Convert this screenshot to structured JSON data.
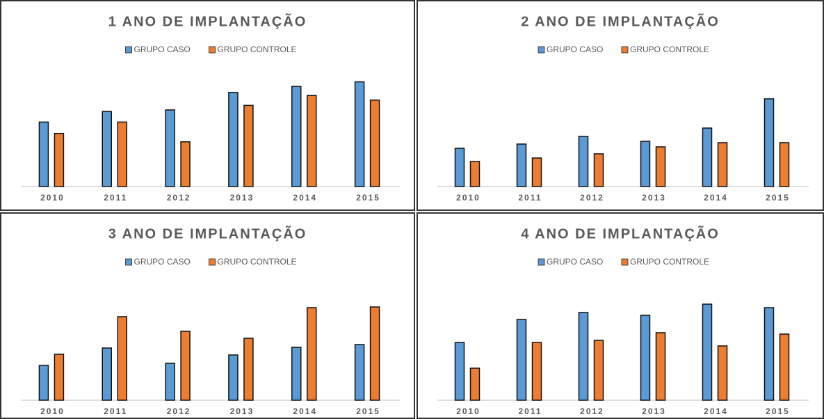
{
  "chart_data": [
    {
      "type": "bar",
      "title": "1 ANO DE IMPLANTAÇÃO",
      "categories": [
        "2010",
        "2011",
        "2012",
        "2013",
        "2014",
        "2015"
      ],
      "series": [
        {
          "name": "GRUPO CASO",
          "color": "#5b9bd5",
          "values": [
            85000000,
            99000000,
            101000000,
            124000000,
            132000000,
            138000000
          ]
        },
        {
          "name": "GRUPO CONTROLE",
          "color": "#ed7d31",
          "values": [
            70000000,
            85000000,
            59000000,
            107000000,
            120000000,
            114000000
          ]
        }
      ],
      "ylim": [
        0,
        156000000
      ],
      "legend": "top"
    },
    {
      "type": "bar",
      "title": "2 ANO DE IMPLANTAÇÃO",
      "categories": [
        "2010",
        "2011",
        "2012",
        "2013",
        "2014",
        "2015"
      ],
      "series": [
        {
          "name": "GRUPO CASO",
          "color": "#5b9bd5",
          "values": [
            1100000,
            1220000,
            1440000,
            1300000,
            1680000,
            2520000
          ]
        },
        {
          "name": "GRUPO CONTROLE",
          "color": "#ed7d31",
          "values": [
            720000,
            820000,
            940000,
            1140000,
            1260000,
            1260000
          ]
        }
      ],
      "ylim": [
        0,
        3400000
      ],
      "legend": "top"
    },
    {
      "type": "bar",
      "title": "3 ANO DE IMPLANTAÇÃO",
      "categories": [
        "2010",
        "2011",
        "2012",
        "2013",
        "2014",
        "2015"
      ],
      "series": [
        {
          "name": "GRUPO CASO",
          "color": "#5b9bd5",
          "values": [
            1000000,
            1500000,
            1060000,
            1300000,
            1520000,
            1600000
          ]
        },
        {
          "name": "GRUPO CONTROLE",
          "color": "#ed7d31",
          "values": [
            1320000,
            2400000,
            1980000,
            1780000,
            2660000,
            2680000
          ]
        }
      ],
      "ylim": [
        0,
        3400000
      ],
      "legend": "top"
    },
    {
      "type": "bar",
      "title": "4 ANO DE IMPLANTAÇÃO",
      "categories": [
        "2010",
        "2011",
        "2012",
        "2013",
        "2014",
        "2015"
      ],
      "series": [
        {
          "name": "GRUPO CASO",
          "color": "#5b9bd5",
          "values": [
            1660000,
            2320000,
            2520000,
            2440000,
            2760000,
            2660000
          ]
        },
        {
          "name": "GRUPO CONTROLE",
          "color": "#ed7d31",
          "values": [
            920000,
            1660000,
            1720000,
            1940000,
            1560000,
            1900000
          ]
        }
      ],
      "ylim": [
        0,
        3400000
      ],
      "legend": "top"
    }
  ]
}
